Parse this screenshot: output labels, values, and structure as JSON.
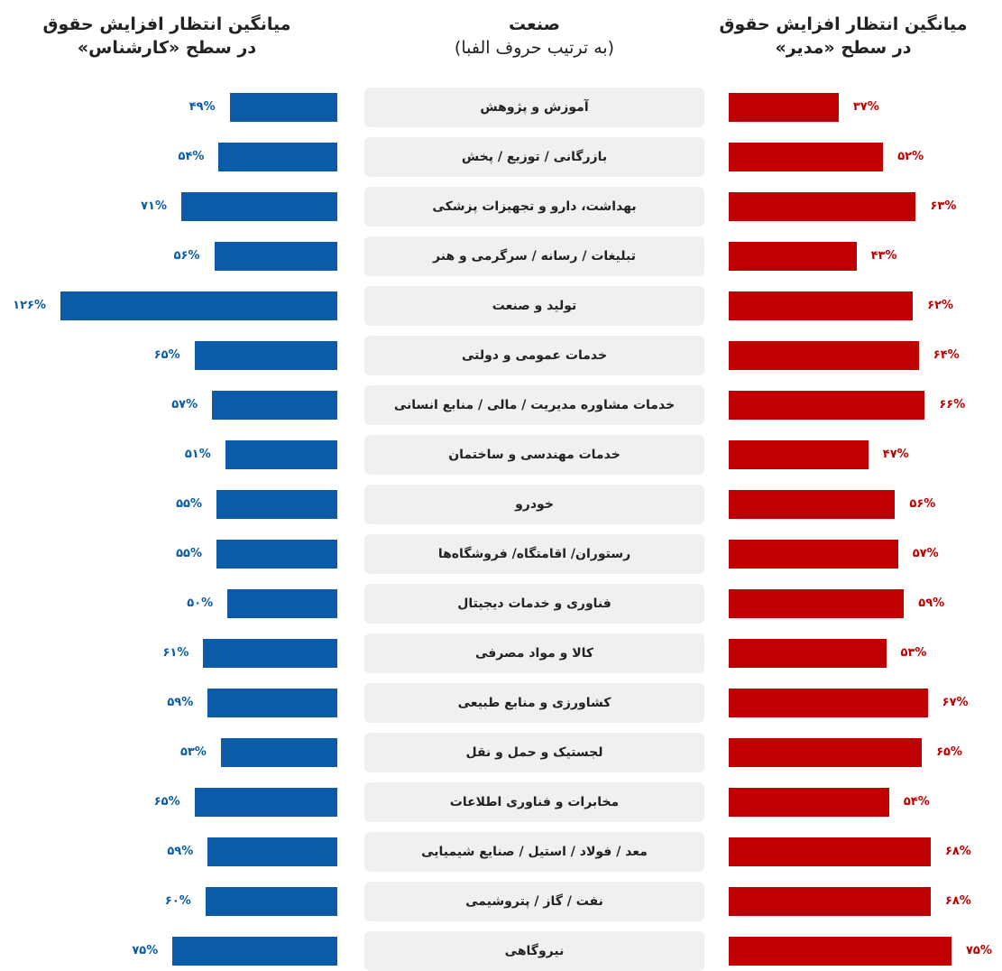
{
  "chart_data": {
    "type": "butterfly",
    "categories": [
      "آموزش و پژوهش",
      "بازرگانی / توزیع / پخش",
      "بهداشت، دارو و تجهیزات پزشکی",
      "تبلیغات / رسانه / سرگرمی و هنر",
      "تولید و صنعت",
      "خدمات عمومی و دولتی",
      "خدمات مشاوره مدیریت / مالی / منابع انسانی",
      "خدمات مهندسی و ساختمان",
      "خودرو",
      "رستوران/ اقامتگاه/ فروشگاه‌ها",
      "فناوری و خدمات دیجیتال",
      "کالا و مواد مصرفی",
      "کشاورزی و منابع طبیعی",
      "لجستیک و حمل و نقل",
      "مخابرات و فناوری اطلاعات",
      "معد / فولاد / استیل / صنایع شیمیایی",
      "نفت / گاز / پتروشیمی",
      "نیروگاهی"
    ],
    "category_header": "صنعت",
    "category_subheader": "(به ترتیب حروف الفبا)",
    "series": [
      {
        "header": [
          "میانگین انتظار افزایش حقوق",
          "در سطح «کارشناس»"
        ],
        "side": "left",
        "color": "#0a5ca8",
        "values": [
          49,
          54,
          71,
          56,
          126,
          65,
          57,
          51,
          55,
          55,
          50,
          61,
          59,
          53,
          65,
          59,
          60,
          75
        ],
        "value_labels": [
          "۴۹%",
          "۵۴%",
          "۷۱%",
          "۵۶%",
          "۱۲۶%",
          "۶۵%",
          "۵۷%",
          "۵۱%",
          "۵۵%",
          "۵۵%",
          "۵۰%",
          "۶۱%",
          "۵۹%",
          "۵۳%",
          "۶۵%",
          "۵۹%",
          "۶۰%",
          "۷۵%"
        ]
      },
      {
        "header": [
          "میانگین انتظار افزایش حقوق",
          "در سطح «مدیر»"
        ],
        "side": "right",
        "color": "#c00000",
        "values": [
          37,
          52,
          63,
          43,
          62,
          64,
          66,
          47,
          56,
          57,
          59,
          53,
          67,
          65,
          54,
          68,
          68,
          75
        ],
        "value_labels": [
          "۳۷%",
          "۵۲%",
          "۶۳%",
          "۴۳%",
          "۶۲%",
          "۶۴%",
          "۶۶%",
          "۴۷%",
          "۵۶%",
          "۵۷%",
          "۵۹%",
          "۵۳%",
          "۶۷%",
          "۶۵%",
          "۵۴%",
          "۶۸%",
          "۶۸%",
          "۷۵%"
        ]
      }
    ]
  }
}
